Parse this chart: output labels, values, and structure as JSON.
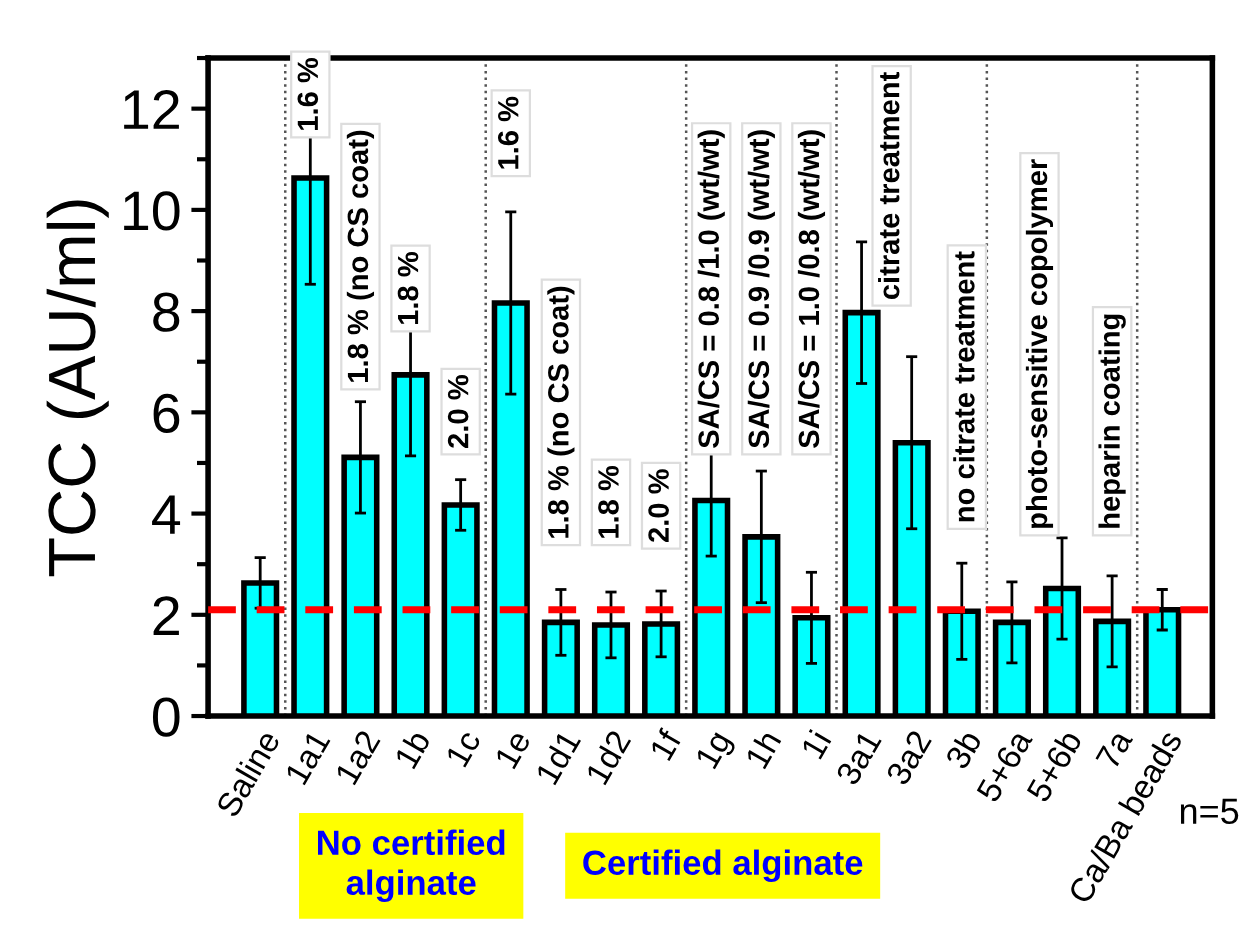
{
  "chart_data": {
    "type": "bar",
    "ylabel": "TCC (AU/ml)",
    "categories": [
      "Saline",
      "1a1",
      "1a2",
      "1b",
      "1c",
      "1e",
      "1d1",
      "1d2",
      "1f",
      "1g",
      "1h",
      "1i",
      "3a1",
      "3a2",
      "3b",
      "5+6a",
      "5+6b",
      "7a",
      "Ca/Ba beads"
    ],
    "values": [
      2.63,
      10.63,
      5.11,
      6.74,
      4.17,
      8.16,
      1.85,
      1.8,
      1.82,
      4.26,
      3.54,
      1.94,
      7.97,
      5.4,
      2.07,
      1.85,
      2.52,
      1.87,
      2.1
    ],
    "errors": [
      0.5,
      2.1,
      1.1,
      1.6,
      0.5,
      1.8,
      0.65,
      0.65,
      0.65,
      1.1,
      1.3,
      0.9,
      1.4,
      1.7,
      0.95,
      0.8,
      1.0,
      0.9,
      0.4
    ],
    "color": "#00ffff",
    "ylim": [
      0,
      13
    ],
    "yticks": [
      0,
      2,
      4,
      6,
      8,
      10,
      12
    ],
    "grid": false,
    "ref_lines": [
      {
        "axis": "y",
        "value": 2.1,
        "color": "#ff0000",
        "line_style": "dashed"
      }
    ],
    "annotations": [
      "1.6 %",
      "1.8 % (no CS coat)",
      "1.8 %",
      "2.0 %",
      "1.6 %",
      "1.8 % (no CS coat)",
      "1.8 %",
      "2.0 %",
      "SA/CS = 0.8 /1.0 (wt/wt)",
      "SA/CS = 0.9 /0.9 (wt/wt)",
      "SA/CS = 1.0 /0.8 (wt/wt)",
      "citrate treatment",
      "no citrate treatment",
      "photo-sensitive copolymer",
      "heparin coating",
      "No certified\nalginate",
      "Certified alginate",
      "n=5"
    ]
  }
}
